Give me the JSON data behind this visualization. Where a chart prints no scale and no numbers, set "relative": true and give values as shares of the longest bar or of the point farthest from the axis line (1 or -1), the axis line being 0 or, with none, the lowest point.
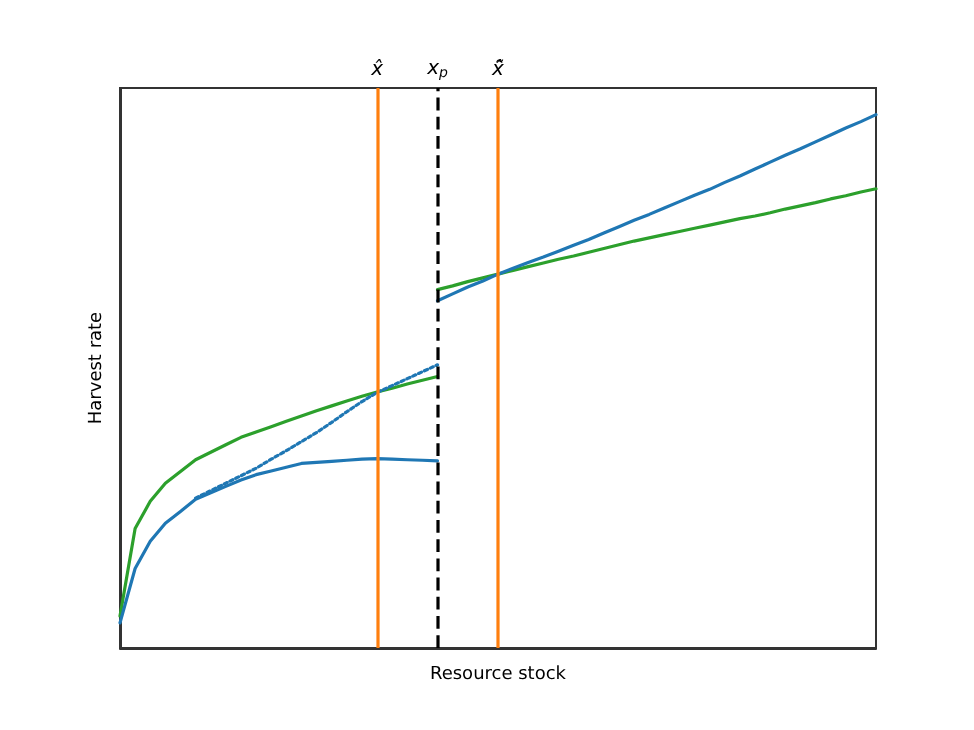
{
  "chart_data": {
    "type": "line",
    "xlabel": "Resource stock",
    "ylabel": "Harvest rate",
    "relative": true,
    "tick_labels": "x",
    "grid": false,
    "categories": [
      null,
      null,
      null,
      null,
      null,
      null,
      null,
      null,
      null,
      null,
      null,
      null,
      null,
      null,
      null,
      null,
      null,
      "x̂",
      null,
      null,
      null,
      "x$_{p}$",
      null,
      null,
      null,
      "x̃̂",
      null,
      null,
      null,
      null,
      null,
      null,
      null,
      null,
      null,
      null,
      null,
      null,
      null,
      null,
      null,
      null,
      null,
      null,
      null,
      null,
      null,
      null,
      null,
      null,
      null
    ],
    "series": [
      {
        "color": "#2ca02c",
        "values": [
          0.06,
          0.224,
          0.275,
          0.309,
          0.331,
          0.353,
          0.367,
          0.381,
          0.395,
          0.405,
          0.415,
          0.425,
          0.435,
          0.445,
          0.454,
          0.463,
          0.472,
          0.48,
          0.487,
          0.495,
          0.502,
          0.509,
          null,
          null,
          null,
          null,
          null,
          null,
          null,
          null,
          null,
          null,
          null,
          null,
          null,
          null,
          null,
          null,
          null,
          null,
          null,
          null,
          null,
          null,
          null,
          null,
          null,
          null,
          null,
          null,
          null
        ]
      },
      {
        "color": "#1f77b4",
        "values": [
          0.047,
          0.149,
          0.2,
          0.234,
          0.256,
          0.279,
          0.291,
          0.303,
          0.315,
          0.325,
          0.332,
          0.339,
          0.346,
          0.348,
          0.35,
          0.352,
          0.354,
          0.355,
          0.354,
          0.353,
          0.352,
          0.351,
          null,
          null,
          null,
          null,
          null,
          null,
          null,
          null,
          null,
          null,
          null,
          null,
          null,
          null,
          null,
          null,
          null,
          null,
          null,
          null,
          null,
          null,
          null,
          null,
          null,
          null,
          null,
          null,
          null
        ]
      },
      {
        "color": "#1f77b4",
        "line_style": "dotted",
        "values": [
          null,
          null,
          null,
          null,
          null,
          0.281,
          0.295,
          0.309,
          0.323,
          0.337,
          0.354,
          0.37,
          0.387,
          0.404,
          0.423,
          0.443,
          0.462,
          0.479,
          0.492,
          0.505,
          0.518,
          0.531,
          null,
          null,
          null,
          null,
          null,
          null,
          null,
          null,
          null,
          null,
          null,
          null,
          null,
          null,
          null,
          null,
          null,
          null,
          null,
          null,
          null,
          null,
          null,
          null,
          null,
          null,
          null,
          null,
          null
        ]
      },
      {
        "color": "#2ca02c",
        "values": [
          null,
          null,
          null,
          null,
          null,
          null,
          null,
          null,
          null,
          null,
          null,
          null,
          null,
          null,
          null,
          null,
          null,
          null,
          null,
          null,
          null,
          0.672,
          0.679,
          0.687,
          0.694,
          0.701,
          0.708,
          0.715,
          0.722,
          0.729,
          0.735,
          0.742,
          0.749,
          0.756,
          0.763,
          0.769,
          0.775,
          0.781,
          0.787,
          0.793,
          0.799,
          0.805,
          0.81,
          0.816,
          0.823,
          0.829,
          0.835,
          0.842,
          0.848,
          0.855,
          0.861
        ]
      },
      {
        "color": "#1f77b4",
        "values": [
          null,
          null,
          null,
          null,
          null,
          null,
          null,
          null,
          null,
          null,
          null,
          null,
          null,
          null,
          null,
          null,
          null,
          null,
          null,
          null,
          null,
          0.651,
          0.664,
          0.677,
          0.688,
          0.701,
          0.712,
          0.723,
          0.733,
          0.744,
          0.755,
          0.766,
          0.778,
          0.79,
          0.802,
          0.813,
          0.825,
          0.837,
          0.849,
          0.86,
          0.873,
          0.885,
          0.898,
          0.911,
          0.924,
          0.936,
          0.949,
          0.962,
          0.975,
          0.987,
          1
        ]
      }
    ],
    "ref_lines": [
      {
        "axis": "x",
        "value": "x̂",
        "color": "#ff7f0e",
        "line_style": "solid"
      },
      {
        "axis": "x",
        "value": "x$_{p}$",
        "color": "#000000",
        "line_style": "dashed"
      },
      {
        "axis": "x",
        "value": "x̃̂",
        "color": "#ff7f0e",
        "line_style": "solid"
      }
    ]
  }
}
